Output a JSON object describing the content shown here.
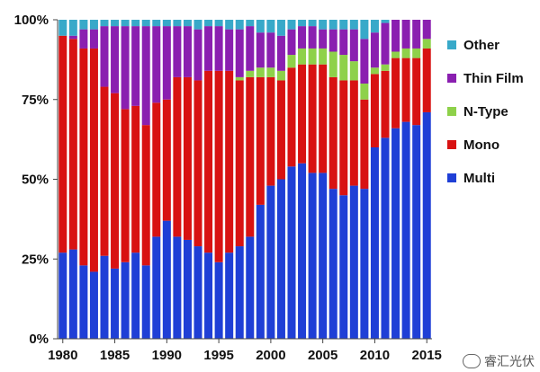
{
  "chart_data": {
    "type": "bar",
    "stacked": true,
    "percent": true,
    "ylim": [
      0,
      100
    ],
    "yticks": [
      0,
      25,
      50,
      75,
      100
    ],
    "ytick_labels": [
      "0%",
      "25%",
      "50%",
      "75%",
      "100%"
    ],
    "xtick_labels": [
      "1980",
      "1985",
      "1990",
      "1995",
      "2000",
      "2005",
      "2010",
      "2015"
    ],
    "legend_position": "right",
    "years": [
      1980,
      1981,
      1982,
      1983,
      1984,
      1985,
      1986,
      1987,
      1988,
      1989,
      1990,
      1991,
      1992,
      1993,
      1994,
      1995,
      1996,
      1997,
      1998,
      1999,
      2000,
      2001,
      2002,
      2003,
      2004,
      2005,
      2006,
      2007,
      2008,
      2009,
      2010,
      2011,
      2012,
      2013,
      2014,
      2015
    ],
    "series": [
      {
        "name": "Multi",
        "color": "#1f3fd6",
        "values": [
          27,
          28,
          23,
          21,
          26,
          22,
          24,
          27,
          23,
          32,
          37,
          32,
          31,
          29,
          27,
          24,
          27,
          29,
          32,
          42,
          48,
          50,
          54,
          55,
          52,
          52,
          47,
          45,
          48,
          47,
          60,
          63,
          66,
          68,
          67,
          71
        ]
      },
      {
        "name": "Mono",
        "color": "#d81212",
        "values": [
          68,
          66,
          68,
          70,
          53,
          55,
          48,
          46,
          44,
          42,
          38,
          50,
          51,
          52,
          57,
          60,
          57,
          52,
          50,
          40,
          34,
          31,
          31,
          31,
          34,
          34,
          35,
          36,
          33,
          28,
          23,
          21,
          22,
          20,
          21,
          20
        ]
      },
      {
        "name": "N-Type",
        "color": "#8ed14a",
        "values": [
          0,
          0,
          0,
          0,
          0,
          0,
          0,
          0,
          0,
          0,
          0,
          0,
          0,
          0,
          0,
          0,
          0,
          1,
          2,
          3,
          3,
          3,
          4,
          5,
          5,
          5,
          8,
          8,
          6,
          5,
          2,
          2,
          2,
          3,
          3,
          3
        ]
      },
      {
        "name": "Thin Film",
        "color": "#8a1fb0",
        "values": [
          0,
          1,
          6,
          6,
          19,
          21,
          26,
          25,
          31,
          24,
          23,
          16,
          16,
          16,
          14,
          14,
          13,
          15,
          14,
          11,
          11,
          11,
          8,
          7,
          7,
          6,
          7,
          8,
          10,
          14,
          11,
          13,
          10,
          9,
          9,
          6
        ]
      },
      {
        "name": "Other",
        "color": "#38a9c9",
        "values": [
          5,
          5,
          3,
          3,
          2,
          2,
          2,
          2,
          2,
          2,
          2,
          2,
          2,
          3,
          2,
          2,
          3,
          3,
          2,
          4,
          4,
          5,
          3,
          2,
          2,
          3,
          3,
          3,
          3,
          6,
          4,
          1,
          0,
          0,
          0,
          0
        ]
      }
    ]
  },
  "watermark": {
    "text": "睿汇光伏"
  }
}
